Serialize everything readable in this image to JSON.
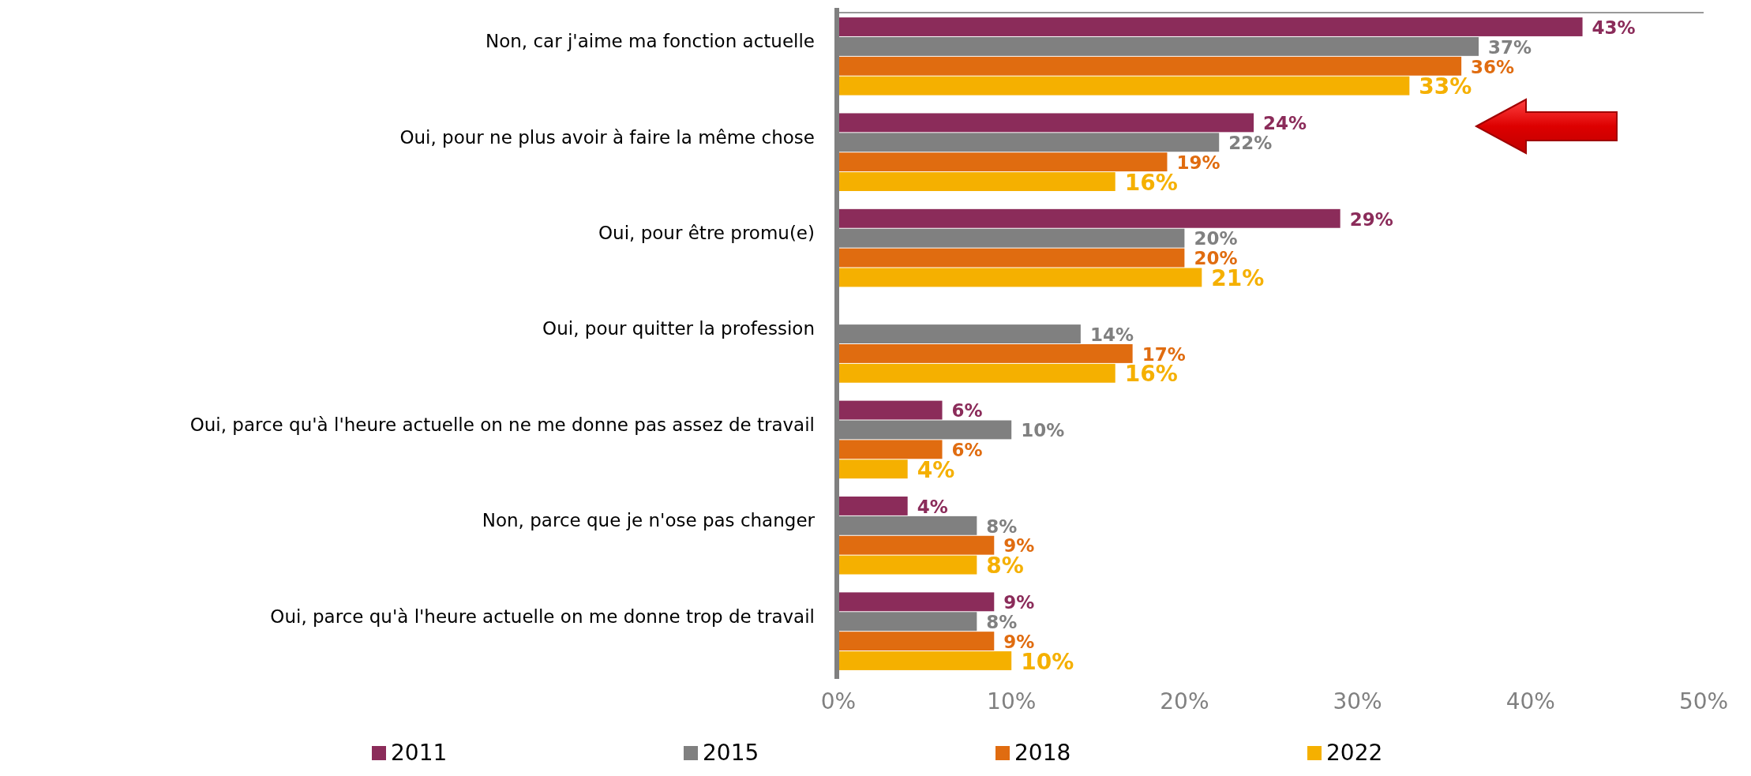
{
  "chart_data": {
    "type": "bar",
    "orientation": "horizontal",
    "categories": [
      "Non, car j'aime ma fonction actuelle",
      "Oui, pour ne plus avoir à faire la même chose",
      "Oui, pour être promu(e)",
      "Oui, pour quitter la profession",
      "Oui, parce qu'à l'heure actuelle on ne me donne pas assez de travail",
      "Non, parce que je n'ose pas changer",
      "Oui, parce qu'à l'heure actuelle on me donne trop de travail"
    ],
    "series": [
      {
        "name": "2011",
        "color": "#8b2c5a",
        "values": [
          43,
          24,
          29,
          null,
          6,
          4,
          9
        ],
        "value_labels": [
          "43%",
          "24%",
          "29%",
          null,
          "6%",
          "4%",
          "9%"
        ]
      },
      {
        "name": "2015",
        "color": "#808080",
        "values": [
          37,
          22,
          20,
          14,
          10,
          8,
          8
        ],
        "value_labels": [
          "37%",
          "22%",
          "20%",
          "14%",
          "10%",
          "8%",
          "8%"
        ]
      },
      {
        "name": "2018",
        "color": "#e06c10",
        "values": [
          36,
          19,
          20,
          17,
          6,
          9,
          9
        ],
        "value_labels": [
          "36%",
          "19%",
          "20%",
          "17%",
          "6%",
          "9%",
          "9%"
        ]
      },
      {
        "name": "2022",
        "color": "#f5b000",
        "values": [
          33,
          16,
          21,
          16,
          4,
          8,
          10
        ],
        "value_labels": [
          "33%",
          "16%",
          "21%",
          "16%",
          "4%",
          "8%",
          "10%"
        ]
      }
    ],
    "xlim": [
      0,
      50
    ],
    "xticks": [
      {
        "value": 0,
        "label": "0%"
      },
      {
        "value": 10,
        "label": "10%"
      },
      {
        "value": 20,
        "label": "20%"
      },
      {
        "value": 30,
        "label": "30%"
      },
      {
        "value": 40,
        "label": "40%"
      },
      {
        "value": 50,
        "label": "50%"
      }
    ],
    "grid": false,
    "legend": "bottom"
  }
}
